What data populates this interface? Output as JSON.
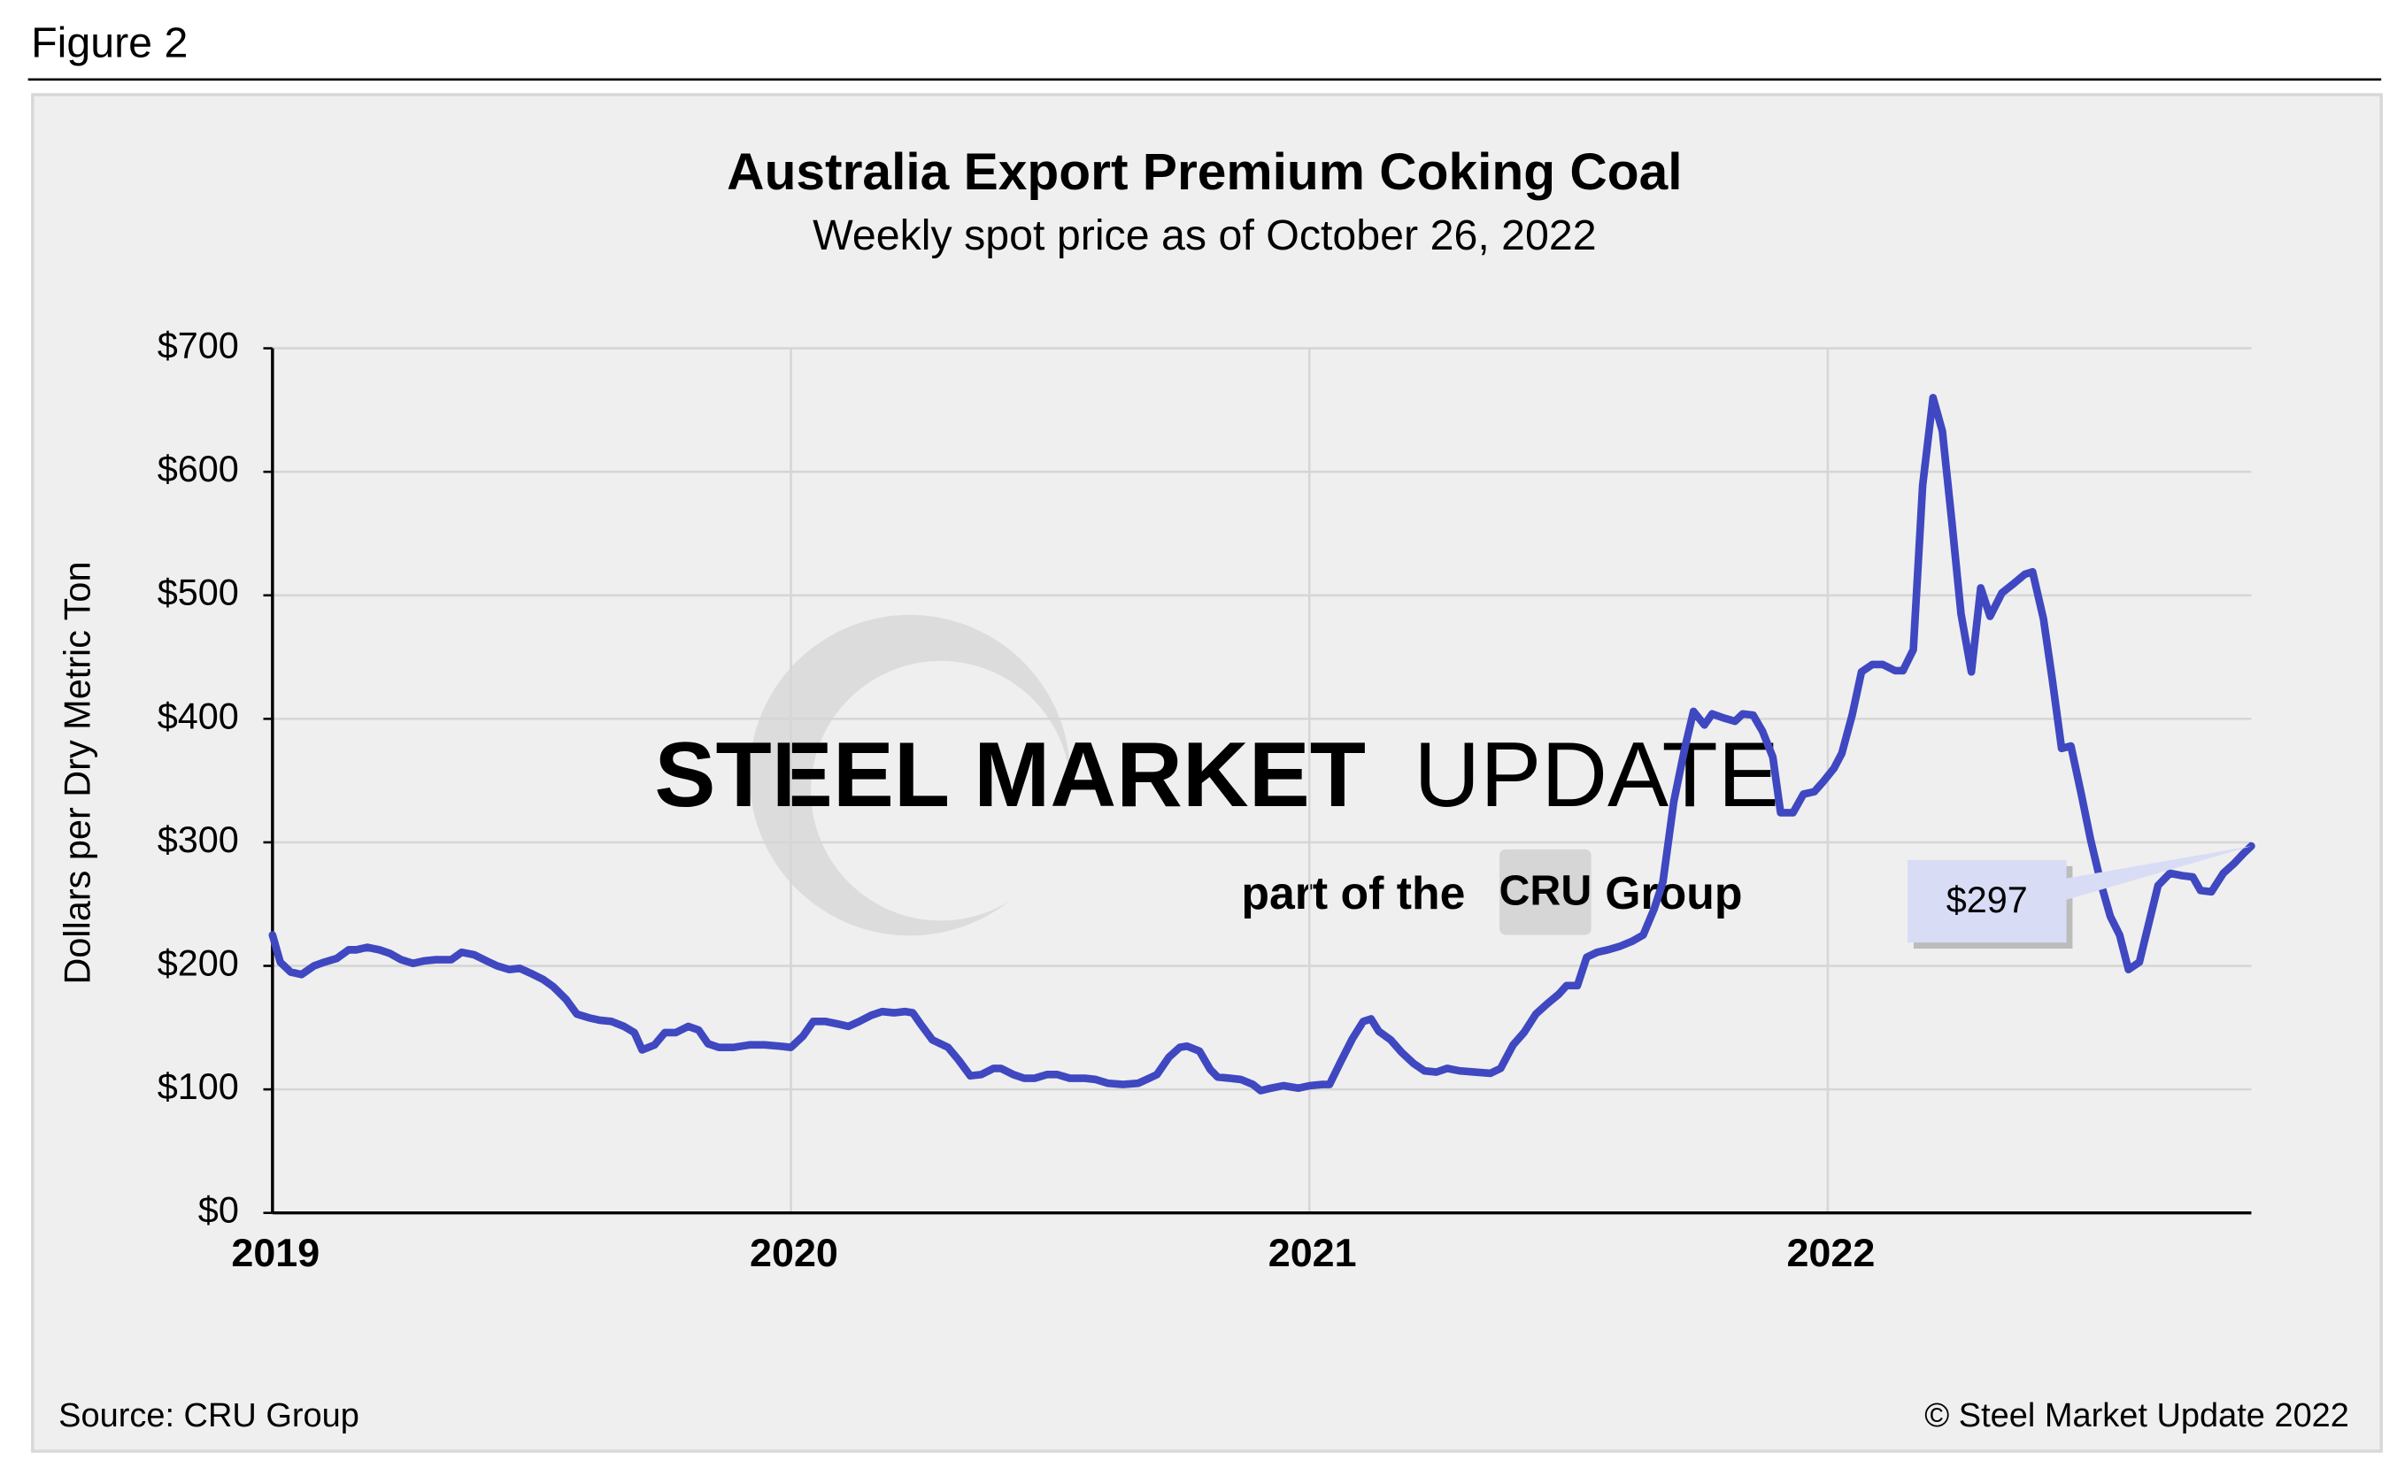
{
  "header": {
    "figure": "Figure 2"
  },
  "chart_data": {
    "type": "line",
    "title": "Australia Export Premium Coking Coal",
    "subtitle": "Weekly spot price as of October 26, 2022",
    "y_label": "Dollars per Dry Metric Ton",
    "source": "Source: CRU Group",
    "copyright": "© Steel Market Update 2022",
    "watermark": {
      "brand": "STEEL MARKET",
      "brand2": "UPDATE",
      "tag": "part of the",
      "logo": "CRU",
      "group": "Group"
    },
    "color": "#3f48c0",
    "grid": true,
    "xlim": [
      2019,
      2022.817
    ],
    "xticks": [
      2019,
      2020,
      2021,
      2022
    ],
    "ylim": [
      0,
      700
    ],
    "yticks": [
      {
        "value": 0,
        "label": "$0"
      },
      {
        "value": 100,
        "label": "$100"
      },
      {
        "value": 200,
        "label": "$200"
      },
      {
        "value": 300,
        "label": "$300"
      },
      {
        "value": 400,
        "label": "$400"
      },
      {
        "value": 500,
        "label": "$500"
      },
      {
        "value": 600,
        "label": "$600"
      },
      {
        "value": 700,
        "label": "$700"
      }
    ],
    "x": [
      2019.0,
      2019.015,
      2019.035,
      2019.056,
      2019.08,
      2019.1,
      2019.124,
      2019.147,
      2019.162,
      2019.183,
      2019.206,
      2019.227,
      2019.248,
      2019.271,
      2019.292,
      2019.315,
      2019.345,
      2019.365,
      2019.389,
      2019.413,
      2019.433,
      2019.457,
      2019.477,
      2019.498,
      2019.522,
      2019.542,
      2019.566,
      2019.587,
      2019.61,
      2019.631,
      2019.654,
      2019.678,
      2019.698,
      2019.713,
      2019.737,
      2019.757,
      2019.778,
      2019.802,
      2019.822,
      2019.84,
      2019.861,
      2019.89,
      2019.92,
      2019.949,
      2019.978,
      2020.0,
      2020.023,
      2020.043,
      2020.067,
      2020.09,
      2020.111,
      2020.132,
      2020.155,
      2020.176,
      2020.199,
      2020.22,
      2020.235,
      2020.25,
      2020.273,
      2020.303,
      2020.323,
      2020.346,
      2020.367,
      2020.391,
      2020.405,
      2020.429,
      2020.45,
      2020.47,
      2020.494,
      2020.514,
      2020.538,
      2020.567,
      2020.588,
      2020.611,
      2020.641,
      2020.67,
      2020.691,
      2020.706,
      2020.729,
      2020.75,
      2020.764,
      2020.788,
      2020.809,
      2020.823,
      2020.847,
      2020.868,
      2020.891,
      2020.906,
      2020.926,
      2020.95,
      2020.979,
      2021.001,
      2021.025,
      2021.039,
      2021.06,
      2021.083,
      2021.104,
      2021.119,
      2021.134,
      2021.157,
      2021.178,
      2021.201,
      2021.222,
      2021.245,
      2021.266,
      2021.29,
      2021.319,
      2021.349,
      2021.369,
      2021.393,
      2021.414,
      2021.437,
      2021.458,
      2021.481,
      2021.496,
      2021.517,
      2021.535,
      2021.555,
      2021.576,
      2021.6,
      2021.623,
      2021.644,
      2021.665,
      2021.682,
      2021.703,
      2021.724,
      2021.741,
      2021.762,
      2021.777,
      2021.797,
      2021.821,
      2021.836,
      2021.856,
      2021.874,
      2021.894,
      2021.909,
      2021.933,
      2021.953,
      2021.974,
      2021.991,
      2022.012,
      2022.027,
      2022.047,
      2022.065,
      2022.086,
      2022.106,
      2022.13,
      2022.145,
      2022.165,
      2022.183,
      2022.203,
      2022.221,
      2022.239,
      2022.257,
      2022.277,
      2022.295,
      2022.313,
      2022.336,
      2022.36,
      2022.38,
      2022.395,
      2022.416,
      2022.433,
      2022.451,
      2022.469,
      2022.489,
      2022.507,
      2022.528,
      2022.545,
      2022.563,
      2022.58,
      2022.601,
      2022.619,
      2022.637,
      2022.66,
      2022.684,
      2022.704,
      2022.719,
      2022.74,
      2022.763,
      2022.784,
      2022.802,
      2022.817
    ],
    "values": [
      225,
      203,
      195,
      193,
      200,
      203,
      206,
      213,
      213,
      215,
      213,
      210,
      205,
      202,
      204,
      205,
      205,
      211,
      209,
      204,
      200,
      197,
      198,
      194,
      189,
      183,
      173,
      161,
      158,
      156,
      155,
      151,
      146,
      132,
      136,
      146,
      146,
      151,
      148,
      137,
      134,
      134,
      136,
      136,
      135,
      134,
      143,
      155,
      155,
      153,
      151,
      155,
      160,
      163,
      162,
      163,
      162,
      153,
      140,
      134,
      124,
      111,
      112,
      117,
      117,
      112,
      109,
      109,
      112,
      112,
      109,
      109,
      108,
      105,
      104,
      105,
      109,
      112,
      126,
      134,
      135,
      131,
      116,
      110,
      109,
      108,
      104,
      99,
      101,
      103,
      101,
      103,
      104,
      104,
      122,
      141,
      155,
      157,
      147,
      140,
      130,
      121,
      115,
      114,
      117,
      115,
      114,
      113,
      117,
      136,
      146,
      161,
      169,
      177,
      184,
      184,
      207,
      211,
      213,
      216,
      220,
      225,
      246,
      268,
      333,
      376,
      406,
      395,
      404,
      401,
      398,
      404,
      403,
      390,
      369,
      324,
      324,
      339,
      341,
      349,
      360,
      372,
      403,
      438,
      444,
      444,
      439,
      439,
      456,
      589,
      660,
      633,
      561,
      485,
      438,
      506,
      483,
      502,
      510,
      517,
      519,
      481,
      432,
      376,
      378,
      339,
      302,
      265,
      240,
      225,
      197,
      203,
      234,
      265,
      275,
      273,
      272,
      261,
      260,
      275,
      283,
      291,
      297
    ],
    "annotations": [
      {
        "x": 2022.817,
        "value": 297,
        "label": "$297"
      }
    ]
  }
}
